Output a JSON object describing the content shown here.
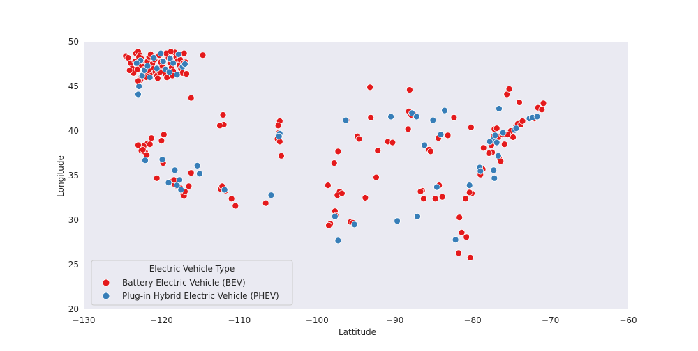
{
  "colors": {
    "background": "#ffffff",
    "plot_background": "#eaeaf2",
    "bev": "#e41a1c",
    "phev": "#377eb8",
    "marker_edge": "#ffffff"
  },
  "chart_data": {
    "type": "scatter",
    "title": "",
    "xlabel": "Lattitude",
    "ylabel": "Longitude",
    "xlim": [
      -130,
      -60
    ],
    "ylim": [
      20,
      50
    ],
    "xticks": [
      -130,
      -120,
      -110,
      -100,
      -90,
      -80,
      -70,
      -60
    ],
    "xtick_labels": [
      "−130",
      "−120",
      "−110",
      "−100",
      "−90",
      "−80",
      "−70",
      "−60"
    ],
    "yticks": [
      20,
      25,
      30,
      35,
      40,
      45,
      50
    ],
    "ytick_labels": [
      "20",
      "25",
      "30",
      "35",
      "40",
      "45",
      "50"
    ],
    "grid": false,
    "legend": {
      "title": "Electric Vehicle Type",
      "placement": "lower-left"
    },
    "series": [
      {
        "name": "Battery Electric Vehicle (BEV)",
        "color": "#e41a1c",
        "points": [
          [
            -124.6,
            48.4
          ],
          [
            -124.3,
            48.2
          ],
          [
            -124.0,
            47.6
          ],
          [
            -123.8,
            47.0
          ],
          [
            -123.6,
            46.5
          ],
          [
            -123.3,
            48.7
          ],
          [
            -123.0,
            48.9
          ],
          [
            -122.8,
            48.5
          ],
          [
            -122.6,
            48.1
          ],
          [
            -122.5,
            47.7
          ],
          [
            -122.4,
            47.4
          ],
          [
            -122.3,
            47.2
          ],
          [
            -122.2,
            46.9
          ],
          [
            -122.1,
            46.6
          ],
          [
            -122.0,
            46.3
          ],
          [
            -121.9,
            46.0
          ],
          [
            -122.9,
            47.3
          ],
          [
            -123.1,
            46.9
          ],
          [
            -122.7,
            45.7
          ],
          [
            -122.6,
            46.1
          ],
          [
            -121.8,
            47.8
          ],
          [
            -121.6,
            48.3
          ],
          [
            -121.4,
            48.6
          ],
          [
            -121.2,
            47.5
          ],
          [
            -121.0,
            47.0
          ],
          [
            -120.8,
            46.6
          ],
          [
            -120.6,
            46.2
          ],
          [
            -120.5,
            45.9
          ],
          [
            -120.3,
            48.5
          ],
          [
            -120.1,
            47.7
          ],
          [
            -119.9,
            47.2
          ],
          [
            -119.7,
            46.8
          ],
          [
            -119.5,
            46.4
          ],
          [
            -119.3,
            46.0
          ],
          [
            -119.1,
            48.2
          ],
          [
            -118.9,
            47.6
          ],
          [
            -118.7,
            47.1
          ],
          [
            -118.5,
            46.7
          ],
          [
            -118.3,
            48.8
          ],
          [
            -118.1,
            48.3
          ],
          [
            -117.9,
            47.9
          ],
          [
            -117.7,
            47.4
          ],
          [
            -117.5,
            47.0
          ],
          [
            -117.3,
            46.5
          ],
          [
            -117.1,
            48.7
          ],
          [
            -116.9,
            47.7
          ],
          [
            -116.8,
            46.4
          ],
          [
            -121.5,
            46.3
          ],
          [
            -120.9,
            48.0
          ],
          [
            -119.4,
            48.7
          ],
          [
            -118.6,
            46.2
          ],
          [
            -117.6,
            48.0
          ],
          [
            -123.4,
            47.8
          ],
          [
            -122.9,
            48.3
          ],
          [
            -121.7,
            46.8
          ],
          [
            -120.2,
            46.6
          ],
          [
            -118.8,
            48.9
          ],
          [
            -117.2,
            47.6
          ],
          [
            -123.0,
            45.6
          ],
          [
            -124.1,
            46.8
          ],
          [
            -114.7,
            48.5
          ],
          [
            -116.2,
            43.7
          ],
          [
            -119.7,
            39.6
          ],
          [
            -120.0,
            38.9
          ],
          [
            -121.3,
            39.2
          ],
          [
            -121.8,
            38.6
          ],
          [
            -122.3,
            38.3
          ],
          [
            -122.6,
            37.8
          ],
          [
            -122.1,
            37.6
          ],
          [
            -121.9,
            37.3
          ],
          [
            -122.4,
            37.9
          ],
          [
            -123.0,
            38.4
          ],
          [
            -121.5,
            38.5
          ],
          [
            -119.8,
            36.4
          ],
          [
            -120.6,
            34.7
          ],
          [
            -118.8,
            34.3
          ],
          [
            -118.3,
            34.0
          ],
          [
            -118.0,
            33.8
          ],
          [
            -117.6,
            33.6
          ],
          [
            -117.2,
            32.9
          ],
          [
            -117.1,
            32.7
          ],
          [
            -116.5,
            33.8
          ],
          [
            -116.2,
            35.3
          ],
          [
            -117.0,
            33.2
          ],
          [
            -118.4,
            34.5
          ],
          [
            -112.1,
            41.8
          ],
          [
            -112.0,
            40.7
          ],
          [
            -112.5,
            40.6
          ],
          [
            -112.4,
            33.5
          ],
          [
            -111.9,
            33.4
          ],
          [
            -112.2,
            33.8
          ],
          [
            -111.0,
            32.4
          ],
          [
            -110.5,
            31.6
          ],
          [
            -111.8,
            33.3
          ],
          [
            -106.6,
            31.9
          ],
          [
            -104.8,
            41.1
          ],
          [
            -105.0,
            40.6
          ],
          [
            -104.9,
            39.8
          ],
          [
            -105.1,
            39.1
          ],
          [
            -104.8,
            38.8
          ],
          [
            -104.6,
            37.2
          ],
          [
            -97.3,
            37.7
          ],
          [
            -97.8,
            36.4
          ],
          [
            -98.6,
            33.9
          ],
          [
            -97.1,
            33.2
          ],
          [
            -97.4,
            32.8
          ],
          [
            -96.8,
            33.0
          ],
          [
            -97.7,
            31.0
          ],
          [
            -98.3,
            29.6
          ],
          [
            -98.5,
            29.4
          ],
          [
            -97.6,
            30.5
          ],
          [
            -95.7,
            29.8
          ],
          [
            -95.4,
            29.7
          ],
          [
            -96.2,
            41.2
          ],
          [
            -94.8,
            39.4
          ],
          [
            -94.6,
            39.1
          ],
          [
            -93.2,
            44.9
          ],
          [
            -93.1,
            41.5
          ],
          [
            -92.4,
            34.8
          ],
          [
            -92.2,
            37.8
          ],
          [
            -90.9,
            38.8
          ],
          [
            -90.3,
            38.7
          ],
          [
            -93.8,
            32.5
          ],
          [
            -88.1,
            44.6
          ],
          [
            -88.2,
            42.2
          ],
          [
            -87.9,
            41.8
          ],
          [
            -87.7,
            42.0
          ],
          [
            -88.3,
            40.2
          ],
          [
            -86.5,
            33.3
          ],
          [
            -86.7,
            33.2
          ],
          [
            -86.3,
            32.4
          ],
          [
            -85.6,
            37.9
          ],
          [
            -85.4,
            37.7
          ],
          [
            -84.8,
            32.4
          ],
          [
            -84.5,
            33.7
          ],
          [
            -84.3,
            33.9
          ],
          [
            -84.4,
            39.2
          ],
          [
            -83.9,
            32.6
          ],
          [
            -83.2,
            39.5
          ],
          [
            -82.4,
            41.5
          ],
          [
            -82.2,
            27.8
          ],
          [
            -81.7,
            30.3
          ],
          [
            -81.8,
            26.3
          ],
          [
            -81.4,
            28.6
          ],
          [
            -80.8,
            28.1
          ],
          [
            -80.3,
            25.8
          ],
          [
            -80.2,
            40.4
          ],
          [
            -80.9,
            32.4
          ],
          [
            -80.1,
            33.0
          ],
          [
            -80.4,
            33.1
          ],
          [
            -79.1,
            35.9
          ],
          [
            -79.0,
            35.1
          ],
          [
            -78.7,
            35.7
          ],
          [
            -78.6,
            38.1
          ],
          [
            -77.5,
            37.6
          ],
          [
            -77.3,
            39.4
          ],
          [
            -77.0,
            38.9
          ],
          [
            -76.7,
            39.3
          ],
          [
            -77.2,
            40.2
          ],
          [
            -76.9,
            40.3
          ],
          [
            -76.6,
            37.0
          ],
          [
            -76.4,
            36.6
          ],
          [
            -76.2,
            39.6
          ],
          [
            -75.9,
            38.5
          ],
          [
            -75.6,
            44.1
          ],
          [
            -75.3,
            44.7
          ],
          [
            -75.1,
            40.0
          ],
          [
            -74.8,
            39.3
          ],
          [
            -74.4,
            40.6
          ],
          [
            -74.2,
            40.8
          ],
          [
            -74.0,
            43.2
          ],
          [
            -73.8,
            40.7
          ],
          [
            -73.6,
            41.1
          ],
          [
            -72.1,
            41.4
          ],
          [
            -71.6,
            42.6
          ],
          [
            -71.1,
            42.4
          ],
          [
            -70.9,
            43.1
          ],
          [
            -77.6,
            38.4
          ],
          [
            -77.9,
            37.5
          ],
          [
            -75.5,
            39.6
          ]
        ]
      },
      {
        "name": "Plug-in Hybrid Electric Vehicle (PHEV)",
        "color": "#377eb8",
        "points": [
          [
            -123.0,
            44.1
          ],
          [
            -122.9,
            45.0
          ],
          [
            -122.5,
            46.2
          ],
          [
            -122.2,
            46.8
          ],
          [
            -121.8,
            47.3
          ],
          [
            -121.0,
            48.2
          ],
          [
            -120.6,
            47.0
          ],
          [
            -119.8,
            47.8
          ],
          [
            -119.5,
            46.9
          ],
          [
            -118.9,
            48.1
          ],
          [
            -118.5,
            47.6
          ],
          [
            -118.0,
            46.3
          ],
          [
            -117.3,
            47.2
          ],
          [
            -117.0,
            47.5
          ],
          [
            -120.1,
            48.7
          ],
          [
            -122.7,
            47.9
          ],
          [
            -123.2,
            47.6
          ],
          [
            -121.5,
            46.0
          ],
          [
            -119.0,
            46.6
          ],
          [
            -117.8,
            48.6
          ],
          [
            -122.1,
            36.7
          ],
          [
            -119.9,
            36.8
          ],
          [
            -119.1,
            34.2
          ],
          [
            -118.3,
            35.6
          ],
          [
            -118.0,
            33.9
          ],
          [
            -117.7,
            34.5
          ],
          [
            -117.5,
            33.4
          ],
          [
            -115.1,
            35.2
          ],
          [
            -115.4,
            36.1
          ],
          [
            -111.9,
            33.4
          ],
          [
            -105.9,
            32.8
          ],
          [
            -104.8,
            39.7
          ],
          [
            -104.9,
            39.4
          ],
          [
            -97.3,
            27.7
          ],
          [
            -97.7,
            30.4
          ],
          [
            -96.3,
            41.2
          ],
          [
            -95.2,
            29.5
          ],
          [
            -90.5,
            41.6
          ],
          [
            -89.7,
            29.9
          ],
          [
            -87.8,
            42.0
          ],
          [
            -87.2,
            41.6
          ],
          [
            -87.1,
            30.4
          ],
          [
            -86.2,
            38.4
          ],
          [
            -85.1,
            41.2
          ],
          [
            -84.6,
            33.7
          ],
          [
            -84.1,
            39.6
          ],
          [
            -83.6,
            42.3
          ],
          [
            -82.2,
            27.8
          ],
          [
            -80.4,
            33.9
          ],
          [
            -79.1,
            35.9
          ],
          [
            -79.0,
            35.5
          ],
          [
            -77.3,
            35.6
          ],
          [
            -77.2,
            34.7
          ],
          [
            -77.4,
            39.0
          ],
          [
            -77.1,
            39.5
          ],
          [
            -76.9,
            38.7
          ],
          [
            -76.7,
            37.2
          ],
          [
            -76.6,
            42.5
          ],
          [
            -74.6,
            40.1
          ],
          [
            -74.4,
            40.3
          ],
          [
            -72.7,
            41.4
          ],
          [
            -72.3,
            41.5
          ],
          [
            -71.7,
            41.6
          ],
          [
            -76.1,
            39.8
          ],
          [
            -77.8,
            38.8
          ]
        ]
      }
    ]
  }
}
